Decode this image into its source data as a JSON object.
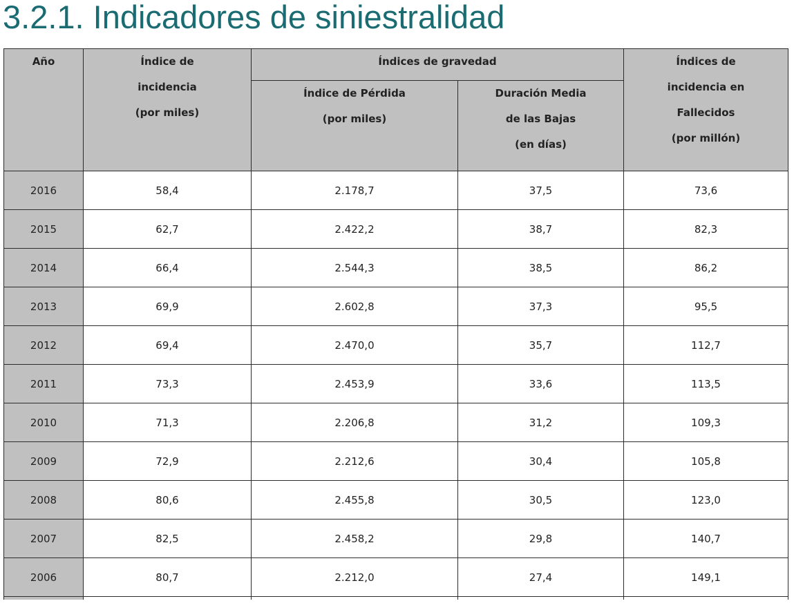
{
  "title": "3.2.1. Indicadores de siniestralidad",
  "headers": {
    "anio": "Año",
    "incidencia": [
      "Índice de",
      "incidencia",
      "(por miles)"
    ],
    "gravedad": "Índices de gravedad",
    "perdida": [
      "Índice de Pérdida",
      "(por miles)"
    ],
    "duracion": [
      "Duración Media",
      "de las Bajas",
      "(en días)"
    ],
    "fallecidos": [
      "Índices de",
      "incidencia en",
      "Fallecidos",
      "(por millón)"
    ]
  },
  "rows": [
    {
      "anio": "2016",
      "incidencia": "58,4",
      "perdida": "2.178,7",
      "duracion": "37,5",
      "fallecidos": "73,6"
    },
    {
      "anio": "2015",
      "incidencia": "62,7",
      "perdida": "2.422,2",
      "duracion": "38,7",
      "fallecidos": "82,3"
    },
    {
      "anio": "2014",
      "incidencia": "66,4",
      "perdida": "2.544,3",
      "duracion": "38,5",
      "fallecidos": "86,2"
    },
    {
      "anio": "2013",
      "incidencia": "69,9",
      "perdida": "2.602,8",
      "duracion": "37,3",
      "fallecidos": "95,5"
    },
    {
      "anio": "2012",
      "incidencia": "69,4",
      "perdida": "2.470,0",
      "duracion": "35,7",
      "fallecidos": "112,7"
    },
    {
      "anio": "2011",
      "incidencia": "73,3",
      "perdida": "2.453,9",
      "duracion": "33,6",
      "fallecidos": "113,5"
    },
    {
      "anio": "2010",
      "incidencia": "71,3",
      "perdida": "2.206,8",
      "duracion": "31,2",
      "fallecidos": "109,3"
    },
    {
      "anio": "2009",
      "incidencia": "72,9",
      "perdida": "2.212,6",
      "duracion": "30,4",
      "fallecidos": "105,8"
    },
    {
      "anio": "2008",
      "incidencia": "80,6",
      "perdida": "2.455,8",
      "duracion": "30,5",
      "fallecidos": "123,0"
    },
    {
      "anio": "2007",
      "incidencia": "82,5",
      "perdida": "2.458,2",
      "duracion": "29,8",
      "fallecidos": "140,7"
    },
    {
      "anio": "2006",
      "incidencia": "80,7",
      "perdida": "2.212,0",
      "duracion": "27,4",
      "fallecidos": "149,1"
    }
  ]
}
